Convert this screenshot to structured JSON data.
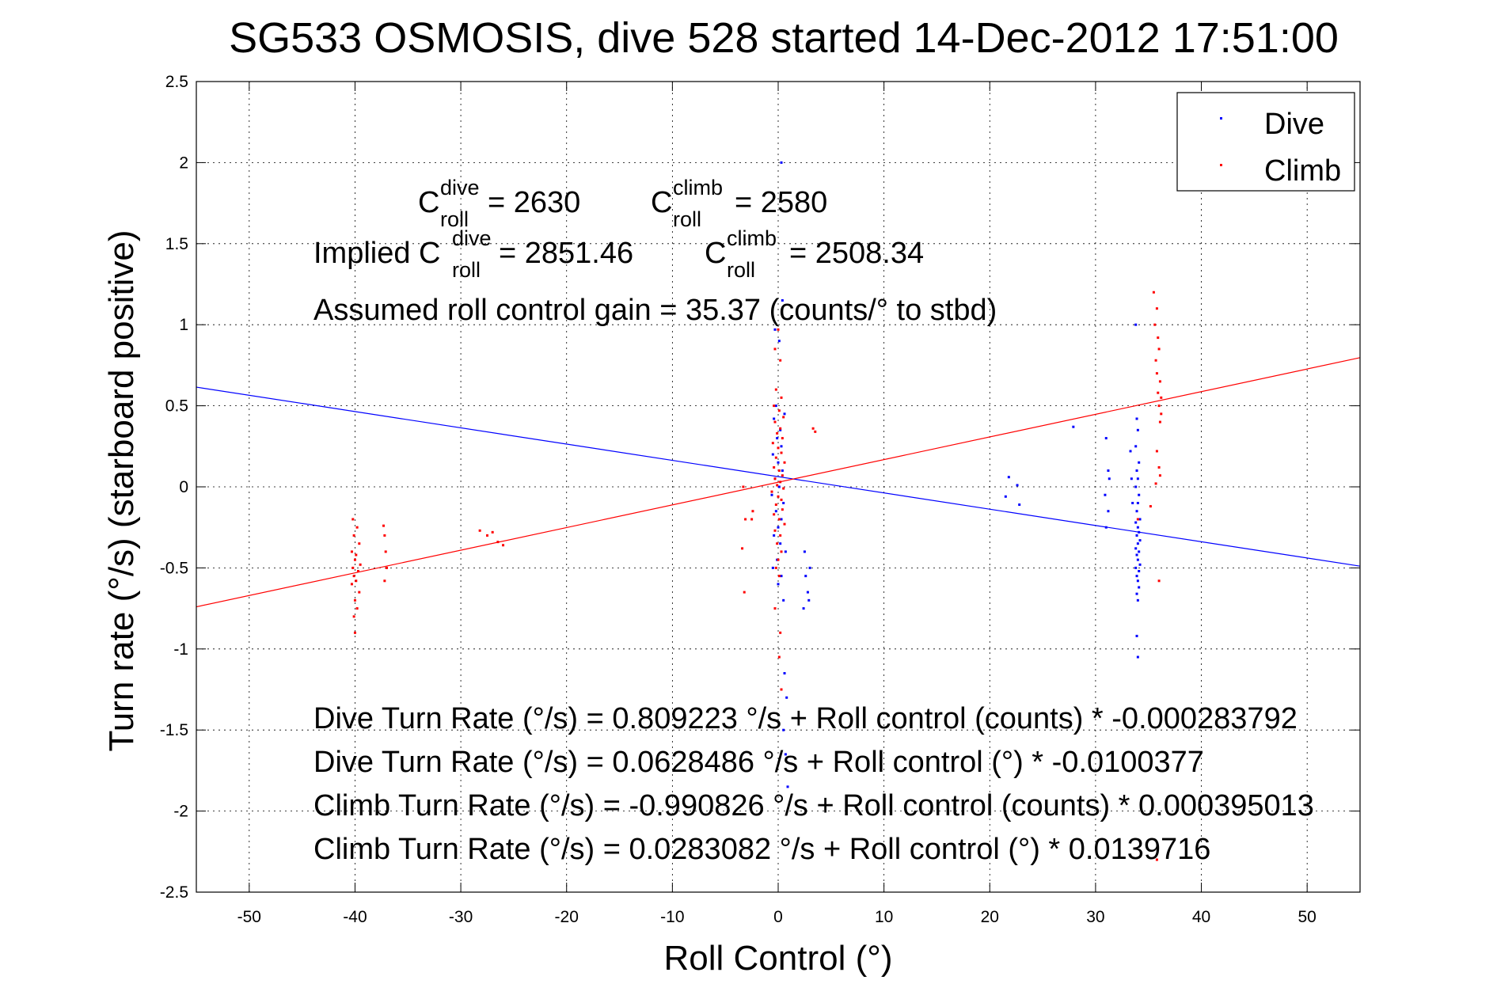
{
  "chart_data": {
    "type": "scatter",
    "title": "SG533 OSMOSIS, dive 528 started 14-Dec-2012 17:51:00",
    "xlabel": "Roll Control (°)",
    "ylabel": "Turn rate (°/s) (starboard positive)",
    "xlim": [
      -55,
      55
    ],
    "ylim": [
      -2.5,
      2.5
    ],
    "xticks": [
      -50,
      -40,
      -30,
      -20,
      -10,
      0,
      10,
      20,
      30,
      40,
      50
    ],
    "yticks": [
      -2.5,
      -2,
      -1.5,
      -1,
      -0.5,
      0,
      0.5,
      1,
      1.5,
      2,
      2.5
    ],
    "xtick_labels": [
      "-50",
      "-40",
      "-30",
      "-20",
      "-10",
      "0",
      "10",
      "20",
      "30",
      "40",
      "50"
    ],
    "ytick_labels": [
      "-2.5",
      "-2",
      "-1.5",
      "-1",
      "-0.5",
      "0",
      "0.5",
      "1",
      "1.5",
      "2",
      "2.5"
    ],
    "grid": true,
    "legend_position": "top-right",
    "colors": {
      "dive": "#0000ff",
      "climb": "#ff0000"
    },
    "series": [
      {
        "name": "Dive",
        "color": "#0000ff",
        "points": [
          [
            0.3,
            2.0
          ],
          [
            0.4,
            1.15
          ],
          [
            -0.3,
            0.97
          ],
          [
            0.1,
            0.9
          ],
          [
            -0.2,
            0.5
          ],
          [
            0.6,
            0.45
          ],
          [
            -0.4,
            0.42
          ],
          [
            0.2,
            0.35
          ],
          [
            -0.1,
            0.3
          ],
          [
            0.3,
            0.25
          ],
          [
            -0.5,
            0.2
          ],
          [
            0.0,
            0.15
          ],
          [
            0.4,
            0.1
          ],
          [
            -0.3,
            0.05
          ],
          [
            0.1,
            0.0
          ],
          [
            -0.6,
            -0.05
          ],
          [
            0.5,
            -0.1
          ],
          [
            -0.2,
            -0.15
          ],
          [
            0.3,
            -0.2
          ],
          [
            0.0,
            -0.25
          ],
          [
            -0.4,
            -0.3
          ],
          [
            0.2,
            -0.35
          ],
          [
            0.7,
            -0.4
          ],
          [
            -0.1,
            -0.45
          ],
          [
            -0.5,
            -0.5
          ],
          [
            0.3,
            -0.55
          ],
          [
            0.0,
            -0.6
          ],
          [
            0.5,
            -0.7
          ],
          [
            0.6,
            -1.15
          ],
          [
            0.8,
            -1.3
          ],
          [
            0.5,
            -1.5
          ],
          [
            0.7,
            -1.65
          ],
          [
            0.9,
            -1.85
          ],
          [
            2.5,
            -0.4
          ],
          [
            2.6,
            -0.55
          ],
          [
            2.8,
            -0.65
          ],
          [
            2.4,
            -0.75
          ],
          [
            2.9,
            -0.7
          ],
          [
            3.0,
            -0.5
          ],
          [
            21.8,
            0.06
          ],
          [
            21.5,
            -0.06
          ],
          [
            22.6,
            0.01
          ],
          [
            22.8,
            -0.11
          ],
          [
            27.9,
            0.37
          ],
          [
            31.0,
            0.3
          ],
          [
            31.2,
            0.1
          ],
          [
            31.3,
            0.05
          ],
          [
            30.9,
            -0.05
          ],
          [
            31.2,
            -0.15
          ],
          [
            31.0,
            -0.25
          ],
          [
            33.3,
            0.22
          ],
          [
            33.4,
            0.05
          ],
          [
            33.5,
            -0.1
          ],
          [
            33.8,
            1.0
          ],
          [
            33.9,
            0.42
          ],
          [
            34.0,
            0.35
          ],
          [
            33.8,
            0.25
          ],
          [
            34.1,
            0.15
          ],
          [
            33.9,
            0.1
          ],
          [
            34.0,
            0.05
          ],
          [
            33.8,
            0.0
          ],
          [
            34.1,
            -0.05
          ],
          [
            34.0,
            -0.1
          ],
          [
            33.9,
            -0.15
          ],
          [
            34.2,
            -0.2
          ],
          [
            33.8,
            -0.22
          ],
          [
            34.0,
            -0.25
          ],
          [
            34.1,
            -0.28
          ],
          [
            33.9,
            -0.3
          ],
          [
            34.2,
            -0.33
          ],
          [
            34.0,
            -0.35
          ],
          [
            33.8,
            -0.38
          ],
          [
            34.1,
            -0.4
          ],
          [
            33.9,
            -0.42
          ],
          [
            34.0,
            -0.45
          ],
          [
            34.2,
            -0.48
          ],
          [
            33.8,
            -0.5
          ],
          [
            34.1,
            -0.52
          ],
          [
            33.9,
            -0.55
          ],
          [
            34.0,
            -0.58
          ],
          [
            34.1,
            -0.62
          ],
          [
            33.9,
            -0.66
          ],
          [
            34.0,
            -0.7
          ],
          [
            33.9,
            -0.92
          ],
          [
            34.0,
            -1.05
          ]
        ]
      },
      {
        "name": "Climb",
        "color": "#ff0000",
        "points": [
          [
            -40.2,
            -0.2
          ],
          [
            -39.8,
            -0.25
          ],
          [
            -40.1,
            -0.3
          ],
          [
            -39.6,
            -0.35
          ],
          [
            -40.3,
            -0.4
          ],
          [
            -39.9,
            -0.42
          ],
          [
            -40.0,
            -0.45
          ],
          [
            -39.5,
            -0.48
          ],
          [
            -40.2,
            -0.5
          ],
          [
            -39.7,
            -0.52
          ],
          [
            -40.1,
            -0.55
          ],
          [
            -39.9,
            -0.58
          ],
          [
            -40.3,
            -0.6
          ],
          [
            -39.6,
            -0.65
          ],
          [
            -40.0,
            -0.7
          ],
          [
            -39.8,
            -0.75
          ],
          [
            -40.1,
            -0.8
          ],
          [
            -40.0,
            -0.9
          ],
          [
            -37.3,
            -0.24
          ],
          [
            -37.2,
            -0.3
          ],
          [
            -37.1,
            -0.4
          ],
          [
            -37.0,
            -0.5
          ],
          [
            -37.2,
            -0.58
          ],
          [
            -28.2,
            -0.27
          ],
          [
            -27.5,
            -0.3
          ],
          [
            -27.0,
            -0.28
          ],
          [
            -26.5,
            -0.34
          ],
          [
            -26.0,
            -0.36
          ],
          [
            0.0,
            0.97
          ],
          [
            -0.3,
            0.85
          ],
          [
            0.2,
            0.78
          ],
          [
            -0.2,
            0.6
          ],
          [
            0.3,
            0.55
          ],
          [
            -0.4,
            0.5
          ],
          [
            0.1,
            0.47
          ],
          [
            0.5,
            0.43
          ],
          [
            -0.3,
            0.4
          ],
          [
            0.2,
            0.36
          ],
          [
            -0.1,
            0.33
          ],
          [
            0.4,
            0.3
          ],
          [
            -0.5,
            0.27
          ],
          [
            0.0,
            0.24
          ],
          [
            0.3,
            0.21
          ],
          [
            -0.2,
            0.18
          ],
          [
            0.6,
            0.15
          ],
          [
            -0.4,
            0.12
          ],
          [
            0.1,
            0.1
          ],
          [
            0.4,
            0.07
          ],
          [
            -0.3,
            0.05
          ],
          [
            0.2,
            0.03
          ],
          [
            -0.1,
            0.01
          ],
          [
            0.5,
            -0.01
          ],
          [
            -0.6,
            -0.03
          ],
          [
            0.0,
            -0.06
          ],
          [
            0.3,
            -0.08
          ],
          [
            -0.2,
            -0.11
          ],
          [
            0.4,
            -0.14
          ],
          [
            -0.4,
            -0.17
          ],
          [
            0.1,
            -0.2
          ],
          [
            0.6,
            -0.23
          ],
          [
            -0.3,
            -0.27
          ],
          [
            0.2,
            -0.3
          ],
          [
            -0.1,
            -0.35
          ],
          [
            0.3,
            -0.4
          ],
          [
            0.0,
            -0.45
          ],
          [
            -0.2,
            -0.5
          ],
          [
            0.1,
            -0.55
          ],
          [
            -0.3,
            -0.75
          ],
          [
            0.2,
            -0.9
          ],
          [
            0.1,
            -1.05
          ],
          [
            0.3,
            -1.25
          ],
          [
            -3.3,
            0.0
          ],
          [
            -3.1,
            -0.2
          ],
          [
            -3.4,
            -0.38
          ],
          [
            -3.2,
            -0.65
          ],
          [
            -2.5,
            -0.2
          ],
          [
            -2.4,
            -0.15
          ],
          [
            3.3,
            0.36
          ],
          [
            3.5,
            0.34
          ],
          [
            34.0,
            -0.2
          ],
          [
            35.2,
            -0.12
          ],
          [
            35.5,
            1.2
          ],
          [
            35.8,
            1.1
          ],
          [
            35.6,
            1.0
          ],
          [
            35.9,
            0.92
          ],
          [
            36.0,
            0.85
          ],
          [
            35.7,
            0.78
          ],
          [
            35.8,
            0.7
          ],
          [
            36.1,
            0.65
          ],
          [
            35.9,
            0.58
          ],
          [
            36.2,
            0.55
          ],
          [
            36.0,
            0.5
          ],
          [
            36.2,
            0.45
          ],
          [
            36.1,
            0.4
          ],
          [
            35.8,
            0.22
          ],
          [
            36.0,
            0.12
          ],
          [
            36.1,
            0.07
          ],
          [
            35.7,
            0.02
          ],
          [
            36.0,
            -0.58
          ],
          [
            35.8,
            -2.3
          ]
        ]
      }
    ],
    "fit_lines": [
      {
        "series": "Dive",
        "color": "#0000ff",
        "intercept": 0.0628486,
        "slope": -0.0100377
      },
      {
        "series": "Climb",
        "color": "#ff0000",
        "intercept": 0.0283082,
        "slope": 0.0139716
      }
    ],
    "annotations": {
      "c_dive": {
        "main": "C",
        "sup": "dive",
        "sub": "roll",
        "value": " = 2630"
      },
      "c_climb": {
        "main": "C",
        "sup": "climb",
        "sub": "roll",
        "value": " = 2580"
      },
      "implied_dive": {
        "prefix": "Implied C",
        "sup": "dive",
        "sub": "roll",
        "value": " = 2851.46"
      },
      "implied_climb": {
        "main": "C",
        "sup": "climb",
        "sub": "roll",
        "value": " = 2508.34"
      },
      "gain": "Assumed roll control gain = 35.37 (counts/° to stbd)",
      "eq1": "Dive Turn Rate (°/s) = 0.809223 °/s + Roll control (counts) * -0.000283792",
      "eq2": "Dive Turn Rate (°/s) = 0.0628486 °/s + Roll control (°) * -0.0100377",
      "eq3": "Climb Turn Rate (°/s) = -0.990826 °/s + Roll control (counts) * 0.000395013",
      "eq4": "Climb Turn Rate (°/s) = 0.0283082 °/s + Roll control (°) * 0.0139716"
    }
  }
}
